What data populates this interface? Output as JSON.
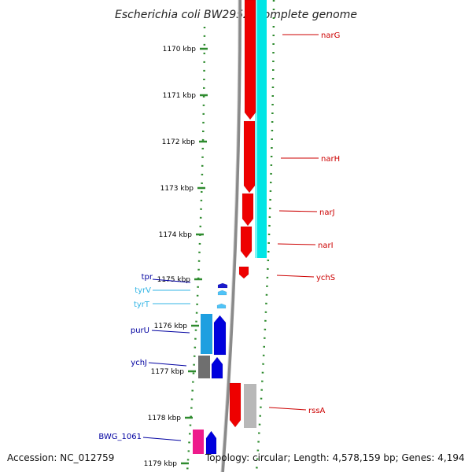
{
  "title": "Escherichia coli BW2952, complete genome",
  "footer": {
    "accession": "Accession: NC_012759",
    "summary": "Topology: circular; Length: 4,578,159 bp; Genes: 4,194"
  },
  "colors": {
    "backbone": "#8a8a8a",
    "ticks": "#2e8b2e",
    "right_label": "#cc0000",
    "left_label_dark": "#0000a0",
    "left_label_light": "#33b5e5"
  },
  "scale": {
    "ticks": [
      {
        "label": "1170 kbp"
      },
      {
        "label": "1171 kbp"
      },
      {
        "label": "1172 kbp"
      },
      {
        "label": "1173 kbp"
      },
      {
        "label": "1174 kbp"
      },
      {
        "label": "1175 kbp"
      },
      {
        "label": "1176 kbp"
      },
      {
        "label": "1177 kbp"
      },
      {
        "label": "1178 kbp"
      },
      {
        "label": "1179 kbp"
      }
    ]
  },
  "genes_right": [
    {
      "name": "narG"
    },
    {
      "name": "narH"
    },
    {
      "name": "narJ"
    },
    {
      "name": "narI"
    },
    {
      "name": "ychS"
    },
    {
      "name": "rssA"
    }
  ],
  "genes_left": [
    {
      "name": "tpr"
    },
    {
      "name": "tyrV"
    },
    {
      "name": "tyrT"
    },
    {
      "name": "purU"
    },
    {
      "name": "ychJ"
    },
    {
      "name": "BWG_1061"
    }
  ]
}
